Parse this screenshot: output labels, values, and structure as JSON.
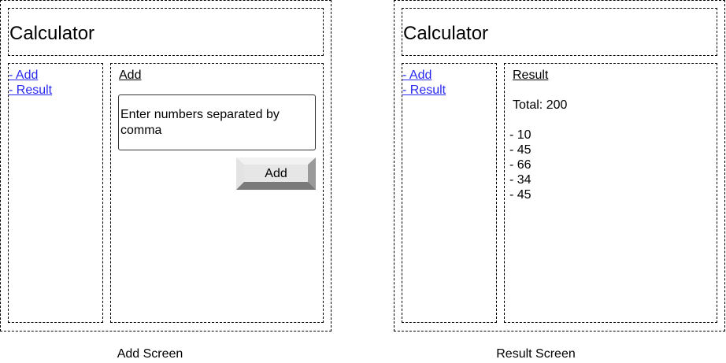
{
  "add_screen": {
    "app_title": "Calculator",
    "nav": {
      "add_link": "- Add",
      "result_link": "- Result"
    },
    "section_title": "Add",
    "input_placeholder": "Enter numbers separated by comma",
    "add_button_label": "Add",
    "caption": "Add Screen"
  },
  "result_screen": {
    "app_title": "Calculator",
    "nav": {
      "add_link": "- Add",
      "result_link": "- Result"
    },
    "section_title": "Result",
    "total_text": "Total: 200",
    "items": [
      "- 10",
      "- 45",
      "- 66",
      "- 34",
      "- 45"
    ],
    "caption": "Result Screen"
  }
}
